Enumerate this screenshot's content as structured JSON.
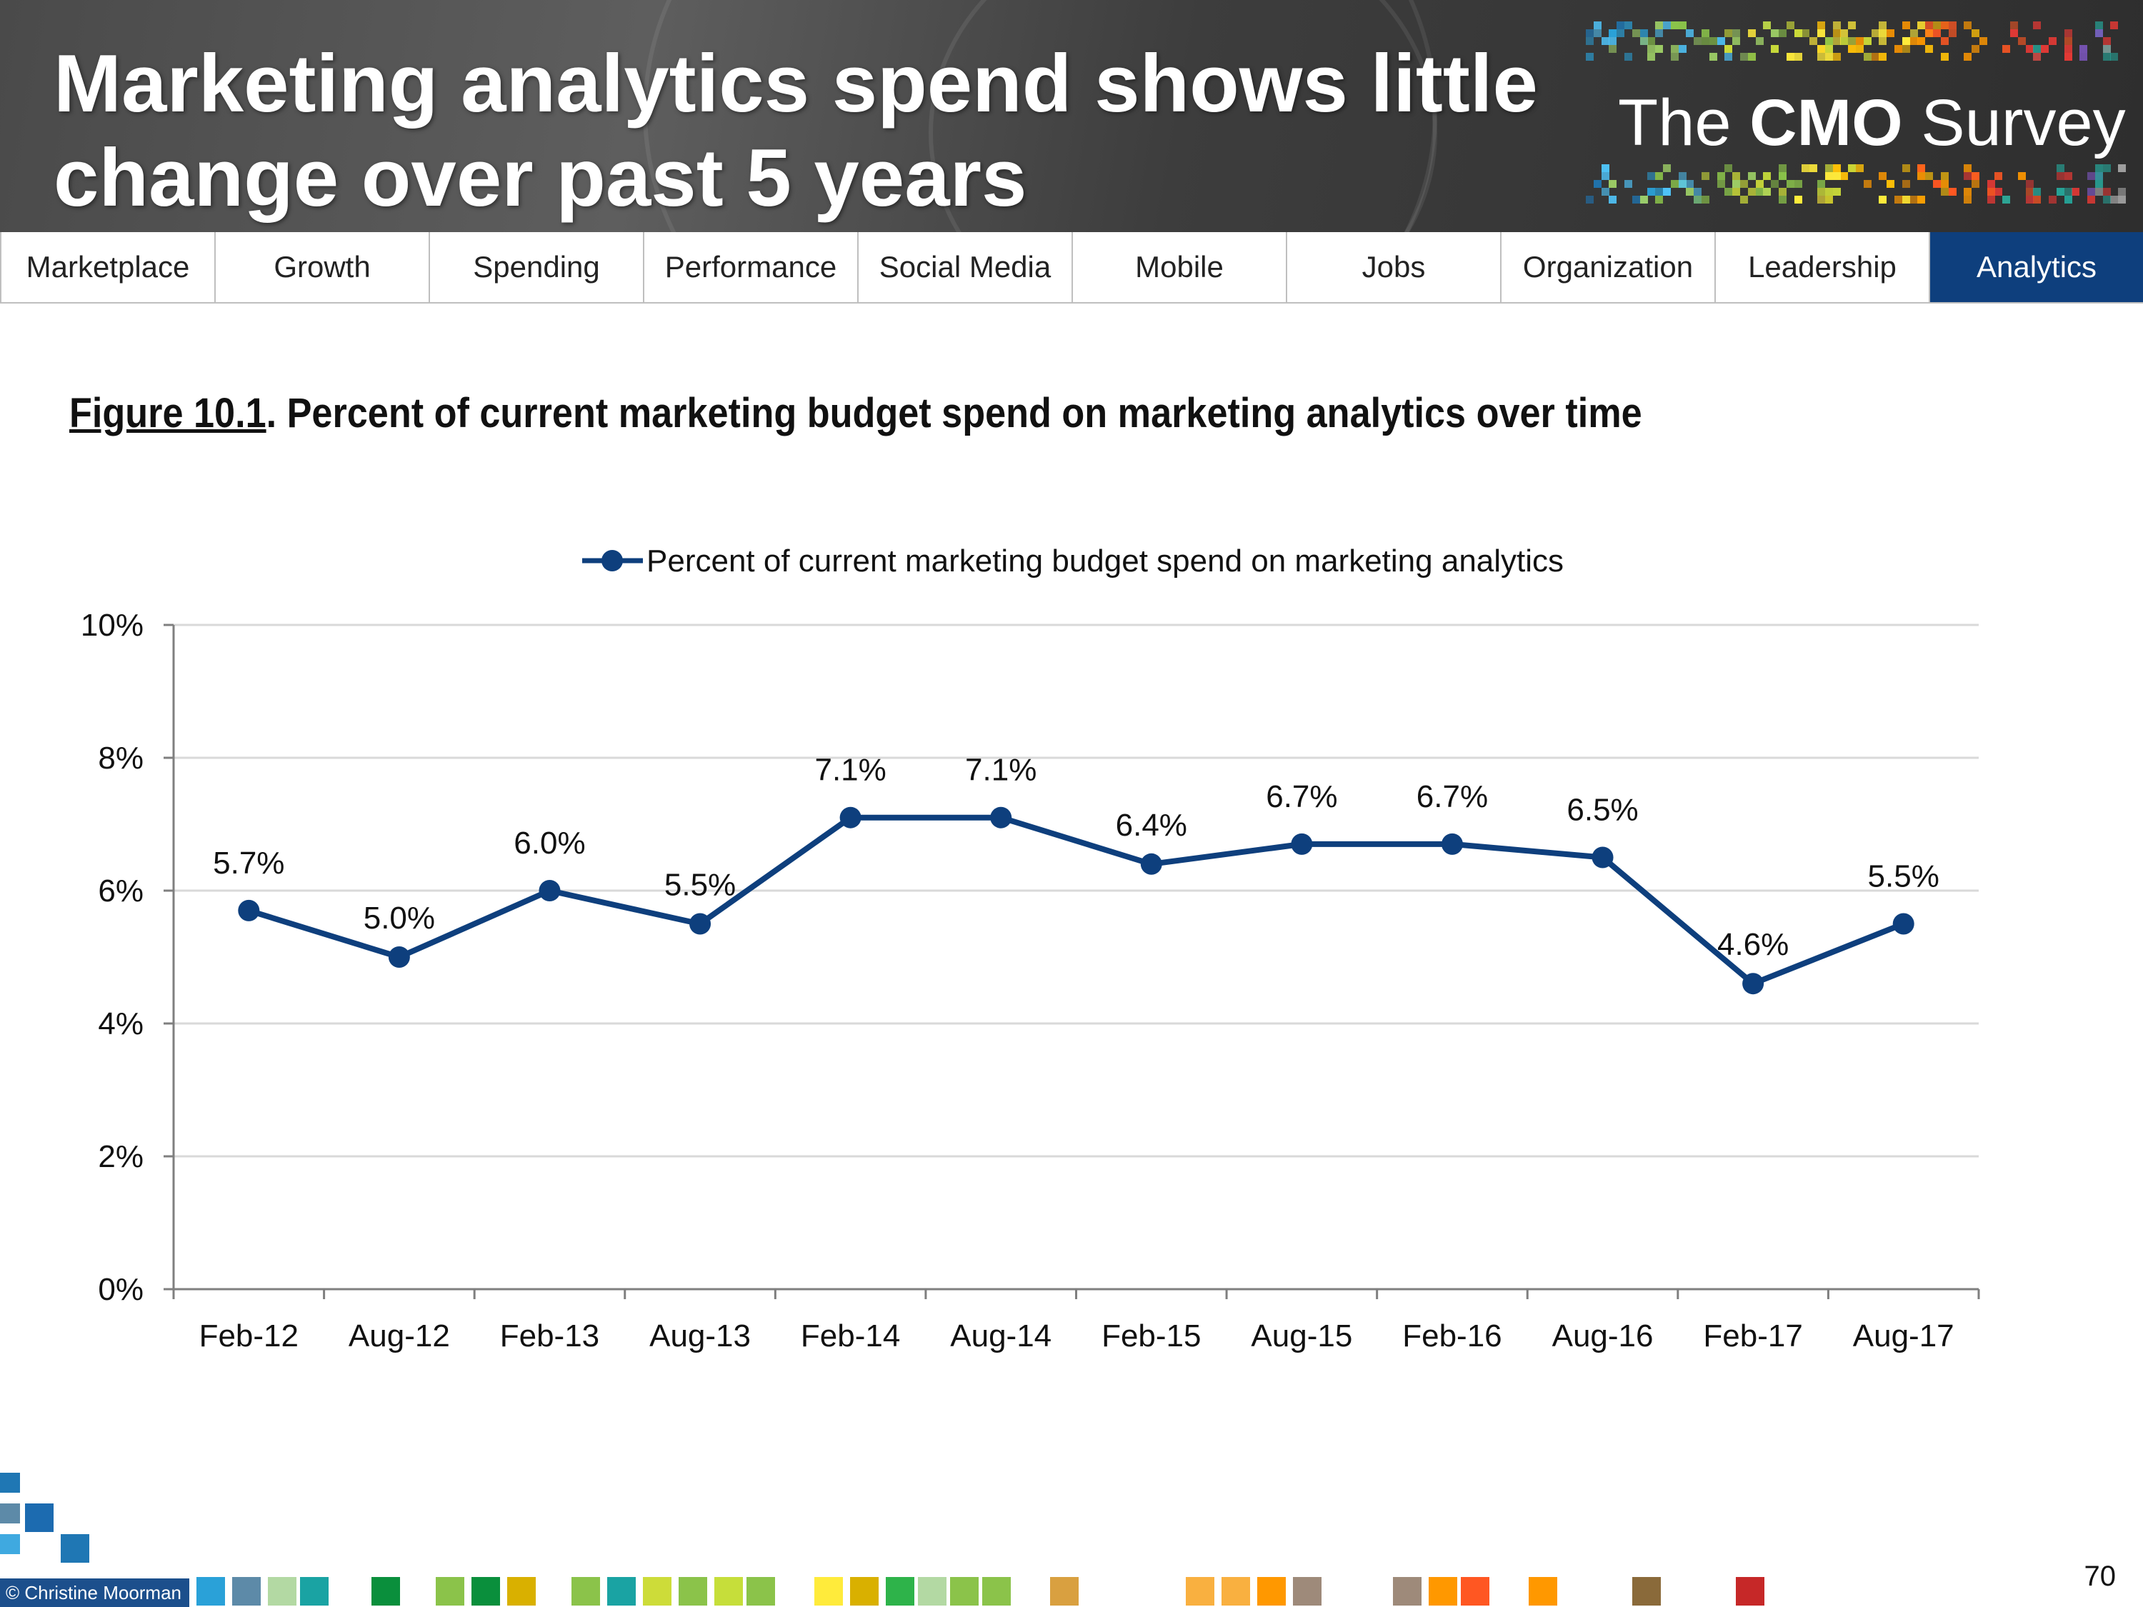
{
  "header": {
    "title": "Marketing analytics spend shows little change over past 5 years",
    "brand_prefix": "The",
    "brand_bold": "CMO",
    "brand_suffix": "Survey"
  },
  "nav": {
    "tabs": [
      {
        "label": "Marketplace",
        "active": false
      },
      {
        "label": "Growth",
        "active": false
      },
      {
        "label": "Spending",
        "active": false
      },
      {
        "label": "Performance",
        "active": false
      },
      {
        "label": "Social Media",
        "active": false
      },
      {
        "label": "Mobile",
        "active": false
      },
      {
        "label": "Jobs",
        "active": false
      },
      {
        "label": "Organization",
        "active": false
      },
      {
        "label": "Leadership",
        "active": false
      },
      {
        "label": "Analytics",
        "active": true
      }
    ],
    "active_color": "#0e3f7d"
  },
  "figure": {
    "number": "Figure 10.1",
    "caption": ". Percent of current marketing budget spend on marketing analytics over time"
  },
  "chart_data": {
    "type": "line",
    "title": "",
    "categories": [
      "Feb-12",
      "Aug-12",
      "Feb-13",
      "Aug-13",
      "Feb-14",
      "Aug-14",
      "Feb-15",
      "Aug-15",
      "Feb-16",
      "Aug-16",
      "Feb-17",
      "Aug-17"
    ],
    "series": [
      {
        "name": "Percent of current marketing budget spend on marketing analytics",
        "values": [
          5.7,
          5.0,
          6.0,
          5.5,
          7.1,
          7.1,
          6.4,
          6.7,
          6.7,
          6.5,
          4.6,
          5.5
        ],
        "labels": [
          "5.7%",
          "5.0%",
          "6.0%",
          "5.5%",
          "7.1%",
          "7.1%",
          "6.4%",
          "6.7%",
          "6.7%",
          "6.5%",
          "4.6%",
          "5.5%"
        ],
        "color": "#0e3f7d"
      }
    ],
    "yticks": [
      0,
      2,
      4,
      6,
      8,
      10
    ],
    "ytick_labels": [
      "0%",
      "2%",
      "4%",
      "6%",
      "8%",
      "10%"
    ],
    "ylim": [
      0,
      10
    ],
    "xlabel": "",
    "ylabel": "",
    "grid": true,
    "legend": "top-center"
  },
  "footer": {
    "copyright": "© Christine Moorman",
    "page_number": "70"
  }
}
